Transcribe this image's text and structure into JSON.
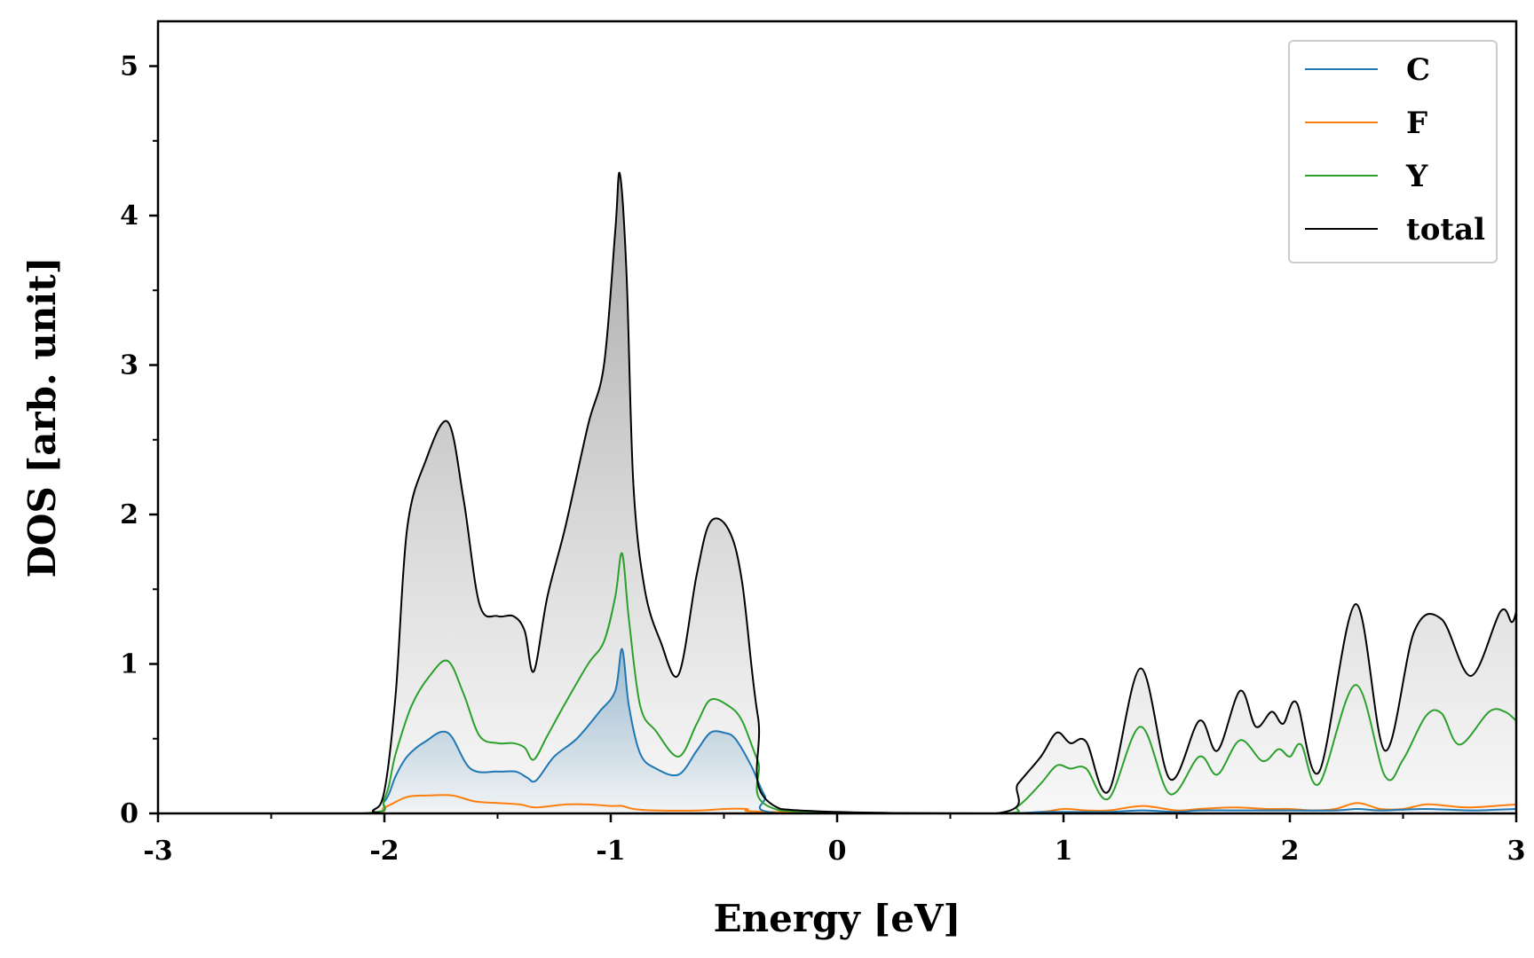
{
  "chart_data": {
    "type": "area",
    "title": "",
    "xlabel": "Energy [eV]",
    "ylabel": "DOS [arb. unit]",
    "xlim": [
      -3,
      3
    ],
    "ylim": [
      0,
      5.3
    ],
    "xticks": [
      "-3",
      "-2",
      "-1",
      "0",
      "1",
      "2",
      "3"
    ],
    "yticks": [
      "0",
      "1",
      "2",
      "3",
      "4",
      "5"
    ],
    "grid": false,
    "legend_position": "top-right",
    "colors": {
      "C": "#1f77b4",
      "F": "#ff7f0e",
      "Y": "#2ca02c",
      "total": "#000000"
    },
    "series": [
      {
        "name": "C",
        "x": [
          -3.0,
          -2.1,
          -2.0,
          -1.95,
          -1.9,
          -1.82,
          -1.72,
          -1.62,
          -1.5,
          -1.42,
          -1.37,
          -1.33,
          -1.25,
          -1.15,
          -1.05,
          -0.98,
          -0.95,
          -0.92,
          -0.87,
          -0.8,
          -0.7,
          -0.62,
          -0.56,
          -0.5,
          -0.45,
          -0.38,
          -0.32,
          -0.25,
          0.7,
          0.9,
          1.0,
          1.1,
          1.2,
          1.35,
          1.5,
          1.6,
          1.75,
          2.0,
          2.2,
          2.3,
          2.4,
          2.6,
          2.8,
          3.0
        ],
        "y": [
          0,
          0,
          0.08,
          0.25,
          0.38,
          0.48,
          0.54,
          0.3,
          0.28,
          0.28,
          0.24,
          0.22,
          0.38,
          0.5,
          0.68,
          0.82,
          1.1,
          0.72,
          0.4,
          0.3,
          0.26,
          0.42,
          0.54,
          0.54,
          0.5,
          0.32,
          0.12,
          0,
          0,
          0.01,
          0.01,
          0.01,
          0.01,
          0.02,
          0.01,
          0.02,
          0.02,
          0.02,
          0.02,
          0.03,
          0.02,
          0.03,
          0.02,
          0.03
        ]
      },
      {
        "name": "F",
        "x": [
          -3.0,
          -2.1,
          -2.0,
          -1.9,
          -1.8,
          -1.7,
          -1.6,
          -1.5,
          -1.4,
          -1.33,
          -1.2,
          -1.1,
          -1.0,
          -0.95,
          -0.9,
          -0.8,
          -0.6,
          -0.5,
          -0.4,
          -0.3,
          0.7,
          0.9,
          1.0,
          1.1,
          1.2,
          1.35,
          1.5,
          1.6,
          1.75,
          1.9,
          2.0,
          2.1,
          2.2,
          2.3,
          2.4,
          2.5,
          2.6,
          2.7,
          2.8,
          3.0
        ],
        "y": [
          0,
          0,
          0.04,
          0.11,
          0.12,
          0.12,
          0.08,
          0.07,
          0.06,
          0.04,
          0.06,
          0.06,
          0.05,
          0.05,
          0.03,
          0.02,
          0.02,
          0.03,
          0.03,
          0.01,
          0,
          0.01,
          0.03,
          0.02,
          0.02,
          0.05,
          0.02,
          0.03,
          0.04,
          0.03,
          0.03,
          0.02,
          0.03,
          0.07,
          0.03,
          0.03,
          0.06,
          0.05,
          0.04,
          0.06
        ]
      },
      {
        "name": "Y",
        "x": [
          -3.0,
          -2.1,
          -2.0,
          -1.95,
          -1.88,
          -1.8,
          -1.72,
          -1.65,
          -1.58,
          -1.5,
          -1.43,
          -1.38,
          -1.34,
          -1.28,
          -1.2,
          -1.1,
          -1.03,
          -0.98,
          -0.95,
          -0.92,
          -0.87,
          -0.8,
          -0.7,
          -0.62,
          -0.56,
          -0.48,
          -0.42,
          -0.35,
          -0.25,
          0.7,
          0.8,
          0.9,
          0.97,
          1.03,
          1.1,
          1.2,
          1.34,
          1.47,
          1.6,
          1.68,
          1.78,
          1.88,
          1.95,
          2.0,
          2.05,
          2.13,
          2.29,
          2.42,
          2.5,
          2.6,
          2.67,
          2.75,
          2.88,
          2.95,
          3.0
        ],
        "y": [
          0,
          0,
          0.1,
          0.4,
          0.72,
          0.92,
          1.02,
          0.8,
          0.52,
          0.47,
          0.47,
          0.44,
          0.36,
          0.52,
          0.74,
          1.0,
          1.15,
          1.45,
          1.74,
          1.3,
          0.72,
          0.55,
          0.38,
          0.6,
          0.76,
          0.72,
          0.62,
          0.35,
          0.02,
          0,
          0.05,
          0.2,
          0.32,
          0.3,
          0.3,
          0.1,
          0.58,
          0.13,
          0.38,
          0.26,
          0.49,
          0.35,
          0.43,
          0.38,
          0.46,
          0.2,
          0.86,
          0.25,
          0.36,
          0.65,
          0.67,
          0.46,
          0.68,
          0.68,
          0.62
        ]
      },
      {
        "name": "total",
        "x": [
          -3.0,
          -2.1,
          -2.05,
          -2.0,
          -1.95,
          -1.9,
          -1.82,
          -1.72,
          -1.65,
          -1.58,
          -1.5,
          -1.43,
          -1.38,
          -1.34,
          -1.28,
          -1.2,
          -1.1,
          -1.03,
          -0.98,
          -0.96,
          -0.93,
          -0.9,
          -0.85,
          -0.78,
          -0.7,
          -0.62,
          -0.56,
          -0.48,
          -0.42,
          -0.35,
          -0.25,
          0.7,
          0.8,
          0.9,
          0.97,
          1.03,
          1.1,
          1.2,
          1.34,
          1.47,
          1.6,
          1.68,
          1.78,
          1.85,
          1.92,
          1.97,
          2.03,
          2.13,
          2.29,
          2.42,
          2.55,
          2.67,
          2.8,
          2.93,
          2.98,
          3.0
        ],
        "y": [
          0,
          0,
          0.02,
          0.15,
          0.8,
          1.9,
          2.35,
          2.62,
          2.1,
          1.4,
          1.32,
          1.32,
          1.22,
          0.95,
          1.45,
          1.92,
          2.6,
          3.0,
          3.9,
          4.28,
          3.6,
          2.2,
          1.5,
          1.15,
          0.93,
          1.6,
          1.95,
          1.9,
          1.55,
          0.65,
          0.03,
          0,
          0.2,
          0.38,
          0.54,
          0.47,
          0.48,
          0.15,
          0.97,
          0.23,
          0.62,
          0.42,
          0.82,
          0.58,
          0.68,
          0.6,
          0.74,
          0.28,
          1.4,
          0.42,
          1.22,
          1.3,
          0.92,
          1.35,
          1.28,
          1.35
        ]
      }
    ],
    "filled_series": [
      "C",
      "total"
    ]
  }
}
